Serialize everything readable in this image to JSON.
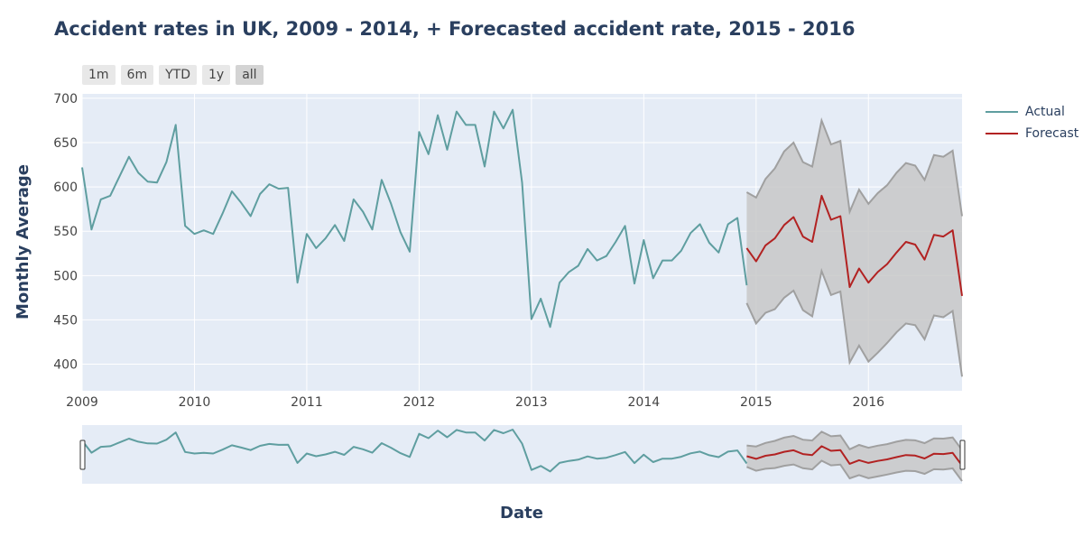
{
  "title": "Accident rates in UK, 2009 - 2014, + Forecasted accident rate, 2015 - 2016",
  "range_buttons": [
    {
      "label": "1m",
      "active": false
    },
    {
      "label": "6m",
      "active": false
    },
    {
      "label": "YTD",
      "active": false
    },
    {
      "label": "1y",
      "active": false
    },
    {
      "label": "all",
      "active": true
    }
  ],
  "legend": [
    {
      "label": "Actual",
      "color": "#5f9ea0"
    },
    {
      "label": "Forecast",
      "color": "#b22222"
    }
  ],
  "colors": {
    "plot_bg": "#e5ecf6",
    "grid": "#ffffff",
    "actual": "#5f9ea0",
    "forecast": "#b22222",
    "band_line": "#a0a0a0",
    "band_fill": "#c8c8c8"
  },
  "chart_data": {
    "type": "line",
    "xlabel": "Date",
    "ylabel": "Monthly Average",
    "xlim": [
      "2009-01",
      "2016-11"
    ],
    "ylim": [
      370,
      705
    ],
    "x_ticks": [
      "2009",
      "2010",
      "2011",
      "2012",
      "2013",
      "2014",
      "2015",
      "2016"
    ],
    "y_ticks": [
      400,
      450,
      500,
      550,
      600,
      650,
      700
    ],
    "grid": true,
    "legend_position": "top-right",
    "has_range_slider": true,
    "series": [
      {
        "name": "Actual",
        "color": "#5f9ea0",
        "start": "2009-01",
        "values": [
          622,
          552,
          586,
          590,
          612,
          634,
          616,
          606,
          605,
          628,
          670,
          556,
          547,
          551,
          547,
          570,
          595,
          582,
          567,
          592,
          603,
          598,
          599,
          492,
          547,
          531,
          542,
          557,
          539,
          586,
          572,
          552,
          608,
          581,
          549,
          527,
          662,
          637,
          681,
          642,
          685,
          670,
          670,
          623,
          685,
          666,
          687,
          605,
          451,
          474,
          442,
          492,
          504,
          511,
          530,
          517,
          522,
          538,
          556,
          491,
          540,
          497,
          517,
          517,
          528,
          548,
          558,
          537,
          526,
          558,
          565,
          489
        ]
      },
      {
        "name": "Forecast",
        "color": "#b22222",
        "start": "2014-12",
        "values": [
          531,
          516,
          534,
          542,
          557,
          566,
          544,
          538,
          590,
          563,
          567,
          487,
          508,
          492,
          504,
          513,
          526,
          538,
          535,
          518,
          546,
          544,
          551,
          477
        ],
        "upper": [
          594,
          588,
          609,
          621,
          640,
          650,
          628,
          623,
          675,
          648,
          652,
          572,
          597,
          581,
          593,
          602,
          616,
          627,
          624,
          608,
          636,
          634,
          641,
          567
        ],
        "lower": [
          469,
          446,
          458,
          462,
          475,
          483,
          461,
          454,
          505,
          478,
          482,
          402,
          421,
          403,
          413,
          424,
          436,
          446,
          444,
          428,
          455,
          453,
          460,
          386
        ]
      }
    ]
  }
}
